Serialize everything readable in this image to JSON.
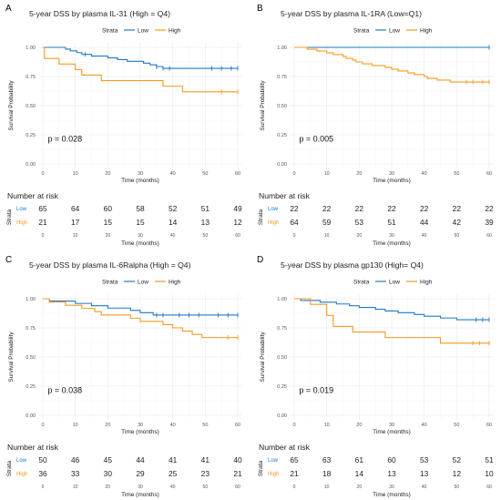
{
  "chart_data": [
    {
      "type": "line",
      "letter": "A",
      "title": "5-year DSS by plasma IL-31 (High = Q4)",
      "legend_title": "Strata",
      "legend_placement": "top",
      "xlabel": "Time (months)",
      "ylabel": "Survival Probability",
      "xlim": [
        0,
        60
      ],
      "ylim": [
        0,
        1
      ],
      "xticks": [
        "0",
        "10",
        "20",
        "30",
        "40",
        "50",
        "60"
      ],
      "yticks": [
        "0.00",
        "0.25",
        "0.50",
        "0.75",
        "1.00"
      ],
      "pvalue": "p = 0.028",
      "series": [
        {
          "name": "Low",
          "color": "#1f78c8",
          "steps": [
            [
              0,
              1.0
            ],
            [
              7,
              0.985
            ],
            [
              8.5,
              0.97
            ],
            [
              10.5,
              0.955
            ],
            [
              12,
              0.94
            ],
            [
              15,
              0.925
            ],
            [
              20,
              0.91
            ],
            [
              23,
              0.895
            ],
            [
              26,
              0.88
            ],
            [
              31,
              0.865
            ],
            [
              33,
              0.85
            ],
            [
              35,
              0.835
            ],
            [
              37,
              0.82
            ],
            [
              48,
              0.82
            ],
            [
              60,
              0.82
            ]
          ],
          "censor": [
            13,
            35,
            37,
            39,
            52,
            55,
            58,
            60
          ]
        },
        {
          "name": "High",
          "color": "#f59a23",
          "steps": [
            [
              0,
              1.0
            ],
            [
              0.5,
              0.905
            ],
            [
              5,
              0.857
            ],
            [
              10,
              0.81
            ],
            [
              12,
              0.762
            ],
            [
              18,
              0.714
            ],
            [
              37,
              0.667
            ],
            [
              43,
              0.619
            ],
            [
              60,
              0.619
            ]
          ],
          "censor": [
            55,
            60
          ]
        }
      ],
      "risk_title": "Number at risk",
      "risk_strata_label": "Strata",
      "risk": [
        {
          "name": "Low",
          "values": [
            "65",
            "64",
            "60",
            "58",
            "52",
            "51",
            "49"
          ]
        },
        {
          "name": "High",
          "values": [
            "21",
            "17",
            "15",
            "15",
            "14",
            "13",
            "12"
          ]
        }
      ],
      "risk_xlabel": "Time (months)"
    },
    {
      "type": "line",
      "letter": "B",
      "title": "5-year DSS by plasma IL-1RA (Low=Q1)",
      "legend_title": "Strata",
      "legend_placement": "top",
      "xlabel": "Time (months)",
      "ylabel": "Survival Probability",
      "xlim": [
        0,
        60
      ],
      "ylim": [
        0,
        1
      ],
      "xticks": [
        "0",
        "10",
        "20",
        "30",
        "40",
        "50",
        "60"
      ],
      "yticks": [
        "0.00",
        "0.25",
        "0.50",
        "0.75",
        "1.00"
      ],
      "pvalue": "p = 0.005",
      "series": [
        {
          "name": "Low",
          "color": "#1f78c8",
          "steps": [
            [
              0,
              1.0
            ],
            [
              60,
              1.0
            ]
          ],
          "censor": [
            60
          ]
        },
        {
          "name": "High",
          "color": "#f59a23",
          "steps": [
            [
              0,
              1.0
            ],
            [
              4,
              0.984
            ],
            [
              7,
              0.969
            ],
            [
              10,
              0.953
            ],
            [
              12,
              0.938
            ],
            [
              15,
              0.922
            ],
            [
              16,
              0.906
            ],
            [
              18,
              0.891
            ],
            [
              19,
              0.875
            ],
            [
              21,
              0.859
            ],
            [
              24,
              0.844
            ],
            [
              28,
              0.828
            ],
            [
              30,
              0.813
            ],
            [
              32,
              0.797
            ],
            [
              35,
              0.781
            ],
            [
              37,
              0.766
            ],
            [
              40,
              0.75
            ],
            [
              41,
              0.734
            ],
            [
              44,
              0.719
            ],
            [
              48,
              0.703
            ],
            [
              60,
              0.703
            ]
          ],
          "censor": [
            53,
            55,
            58,
            60
          ]
        }
      ],
      "risk_title": "Number at risk",
      "risk_strata_label": "Strata",
      "risk": [
        {
          "name": "Low",
          "values": [
            "22",
            "22",
            "22",
            "22",
            "22",
            "22",
            "22"
          ]
        },
        {
          "name": "High",
          "values": [
            "64",
            "59",
            "53",
            "51",
            "44",
            "42",
            "39"
          ]
        }
      ],
      "risk_xlabel": "Time (months)"
    },
    {
      "type": "line",
      "letter": "C",
      "title": "5-year DSS by plasma IL-6Ralpha (High = Q4)",
      "legend_title": "Strata",
      "legend_placement": "top",
      "xlabel": "Time (months)",
      "ylabel": "Survival Probability",
      "xlim": [
        0,
        60
      ],
      "ylim": [
        0,
        1
      ],
      "xticks": [
        "0",
        "10",
        "20",
        "30",
        "40",
        "50",
        "60"
      ],
      "yticks": [
        "0.00",
        "0.25",
        "0.50",
        "0.75",
        "1.00"
      ],
      "pvalue": "p = 0.038",
      "series": [
        {
          "name": "Low",
          "color": "#1f78c8",
          "steps": [
            [
              0,
              1.0
            ],
            [
              2,
              0.98
            ],
            [
              10,
              0.96
            ],
            [
              15,
              0.94
            ],
            [
              20,
              0.92
            ],
            [
              27,
              0.9
            ],
            [
              30,
              0.88
            ],
            [
              34,
              0.86
            ],
            [
              60,
              0.86
            ]
          ],
          "censor": [
            35,
            37,
            42,
            45,
            48,
            54,
            57,
            60
          ]
        },
        {
          "name": "High",
          "color": "#f59a23",
          "steps": [
            [
              0,
              1.0
            ],
            [
              2,
              0.972
            ],
            [
              7,
              0.944
            ],
            [
              12,
              0.917
            ],
            [
              16,
              0.889
            ],
            [
              18,
              0.861
            ],
            [
              27,
              0.833
            ],
            [
              30,
              0.806
            ],
            [
              37,
              0.778
            ],
            [
              40,
              0.75
            ],
            [
              43,
              0.722
            ],
            [
              46,
              0.694
            ],
            [
              49,
              0.667
            ],
            [
              60,
              0.667
            ]
          ],
          "censor": [
            57,
            60
          ]
        }
      ],
      "risk_title": "Number at risk",
      "risk_strata_label": "Strata",
      "risk": [
        {
          "name": "Low",
          "values": [
            "50",
            "46",
            "45",
            "44",
            "41",
            "41",
            "40"
          ]
        },
        {
          "name": "High",
          "values": [
            "36",
            "33",
            "30",
            "29",
            "25",
            "23",
            "21"
          ]
        }
      ],
      "risk_xlabel": "Time (months)"
    },
    {
      "type": "line",
      "letter": "D",
      "title": "5-year DSS by plasma gp130 (High= Q4)",
      "legend_title": "Strata",
      "legend_placement": "top",
      "xlabel": "Time (months)",
      "ylabel": "Survival Probability",
      "xlim": [
        0,
        60
      ],
      "ylim": [
        0,
        1
      ],
      "xticks": [
        "0",
        "10",
        "20",
        "30",
        "40",
        "50",
        "60"
      ],
      "yticks": [
        "0.00",
        "0.25",
        "0.50",
        "0.75",
        "1.00"
      ],
      "pvalue": "p = 0.019",
      "series": [
        {
          "name": "Low",
          "color": "#1f78c8",
          "steps": [
            [
              0,
              1.0
            ],
            [
              2,
              0.985
            ],
            [
              8,
              0.97
            ],
            [
              13,
              0.955
            ],
            [
              17,
              0.94
            ],
            [
              20,
              0.925
            ],
            [
              25,
              0.91
            ],
            [
              28,
              0.895
            ],
            [
              32,
              0.88
            ],
            [
              37,
              0.865
            ],
            [
              40,
              0.85
            ],
            [
              45,
              0.835
            ],
            [
              50,
              0.82
            ],
            [
              60,
              0.82
            ]
          ],
          "censor": [
            56,
            58,
            60
          ]
        },
        {
          "name": "High",
          "color": "#f59a23",
          "steps": [
            [
              0,
              1.0
            ],
            [
              5,
              0.952
            ],
            [
              10,
              0.857
            ],
            [
              12,
              0.762
            ],
            [
              18,
              0.714
            ],
            [
              28,
              0.667
            ],
            [
              45,
              0.619
            ],
            [
              60,
              0.619
            ]
          ],
          "censor": [
            55,
            57,
            60
          ]
        }
      ],
      "risk_title": "Number at risk",
      "risk_strata_label": "Strata",
      "risk": [
        {
          "name": "Low",
          "values": [
            "65",
            "63",
            "61",
            "60",
            "53",
            "52",
            "51"
          ]
        },
        {
          "name": "High",
          "values": [
            "21",
            "18",
            "14",
            "13",
            "13",
            "12",
            "10"
          ]
        }
      ],
      "risk_xlabel": "Time (months)"
    }
  ]
}
